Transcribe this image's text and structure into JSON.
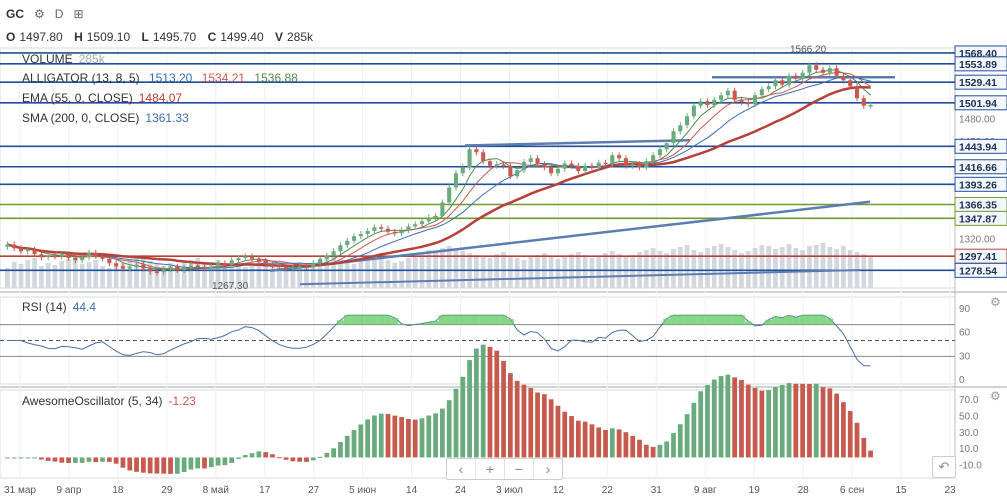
{
  "header": {
    "symbol": "GC",
    "timeframe": "D",
    "ohlc": [
      {
        "label": "O",
        "value": "1497.80"
      },
      {
        "label": "H",
        "value": "1509.10"
      },
      {
        "label": "L",
        "value": "1495.70"
      },
      {
        "label": "C",
        "value": "1499.40"
      },
      {
        "label": "V",
        "value": "285k"
      }
    ]
  },
  "legends": {
    "volume": {
      "name": "VOLUME",
      "value": "285k"
    },
    "alligator": {
      "name": "ALLIGATOR (13, 8, 5)",
      "values": [
        "1513.20",
        "1534.21",
        "1536.88"
      ]
    },
    "ema": {
      "name": "EMA (55, 0, CLOSE)",
      "value": "1484.07"
    },
    "sma": {
      "name": "SMA (200, 0, CLOSE)",
      "value": "1361.33"
    },
    "rsi": {
      "name": "RSI (14)",
      "value": "44.4"
    },
    "ao": {
      "name": "AwesomeOscillator (5, 34)",
      "value": "-1.23"
    }
  },
  "colors": {
    "up": "#6aab7e",
    "down": "#c75a4f",
    "blue_line": "#1f4e9c",
    "steel": "#5b7db3",
    "red_line": "#b5413a",
    "green_line": "#6f9a2c",
    "volume": "#d3d7de",
    "rsi": "#4a6fa5",
    "rsi_fill": "#66cc66"
  },
  "chart_data": [
    {
      "type": "candlestick",
      "title": "GC",
      "y_ticks": [
        1480.0,
        1450.0,
        1320.0
      ],
      "ylim": [
        1255,
        1575
      ],
      "x_ticks": [
        "31 мар",
        "9 апр",
        "18",
        "29",
        "8 май",
        "17",
        "27",
        "5 июн",
        "14",
        "24",
        "3 июл",
        "12",
        "22",
        "31",
        "9 авг",
        "19",
        "28",
        "6 сен",
        "15",
        "23"
      ],
      "price_levels": [
        {
          "value": 1568.4,
          "label": "1568.40",
          "color": "#1f4e9c"
        },
        {
          "value": 1553.89,
          "label": "1553.89",
          "color": "#1f4e9c"
        },
        {
          "value": 1529.41,
          "label": "1529.41",
          "color": "#1f4e9c"
        },
        {
          "value": 1501.94,
          "label": "1501.94",
          "color": "#1f4e9c"
        },
        {
          "value": 1443.94,
          "label": "1443.94",
          "color": "#1f4e9c"
        },
        {
          "value": 1416.66,
          "label": "1416.66",
          "color": "#1f4e9c"
        },
        {
          "value": 1393.26,
          "label": "1393.26",
          "color": "#1f4e9c"
        },
        {
          "value": 1366.35,
          "label": "1366.35",
          "color": "#6f9a2c"
        },
        {
          "value": 1347.87,
          "label": "1347.87",
          "color": "#6f9a2c"
        },
        {
          "value": 1297.41,
          "label": "1297.41",
          "color": "#b5413a"
        },
        {
          "value": 1278.54,
          "label": "1278.54",
          "color": "#1f4e9c"
        }
      ],
      "annotations": [
        {
          "text": "1566.20",
          "value": 1566.2
        },
        {
          "text": "1267.30",
          "value": 1267.3
        }
      ],
      "candles_close": [
        1313,
        1308,
        1304,
        1306,
        1300,
        1296,
        1298,
        1297,
        1300,
        1295,
        1292,
        1296,
        1302,
        1298,
        1294,
        1288,
        1284,
        1281,
        1283,
        1286,
        1281,
        1277,
        1276,
        1280,
        1283,
        1279,
        1282,
        1285,
        1283,
        1281,
        1283,
        1288,
        1286,
        1292,
        1295,
        1297,
        1294,
        1291,
        1287,
        1285,
        1283,
        1281,
        1282,
        1284,
        1283,
        1288,
        1294,
        1298,
        1304,
        1312,
        1318,
        1324,
        1327,
        1331,
        1336,
        1334,
        1330,
        1328,
        1332,
        1337,
        1340,
        1344,
        1349,
        1351,
        1369,
        1389,
        1408,
        1416,
        1440,
        1436,
        1424,
        1418,
        1420,
        1418,
        1404,
        1412,
        1423,
        1428,
        1420,
        1416,
        1408,
        1414,
        1421,
        1418,
        1411,
        1418,
        1416,
        1422,
        1420,
        1432,
        1428,
        1418,
        1420,
        1416,
        1424,
        1432,
        1440,
        1448,
        1464,
        1472,
        1484,
        1498,
        1504,
        1499,
        1506,
        1512,
        1518,
        1506,
        1503,
        1500,
        1512,
        1520,
        1524,
        1532,
        1526,
        1538,
        1534,
        1542,
        1552,
        1546,
        1542,
        1548,
        1538,
        1532,
        1524,
        1508,
        1498,
        1499
      ],
      "volume": [
        40,
        52,
        48,
        56,
        60,
        44,
        50,
        46,
        54,
        58,
        62,
        48,
        52,
        56,
        44,
        40,
        46,
        50,
        58,
        62,
        66,
        54,
        48,
        44,
        50,
        46,
        52,
        56,
        60,
        48,
        52,
        56,
        50,
        48,
        46,
        42,
        50,
        54,
        58,
        48,
        44,
        40,
        46,
        52,
        48,
        50,
        56,
        60,
        64,
        58,
        52,
        48,
        54,
        60,
        66,
        62,
        56,
        50,
        54,
        60,
        64,
        72,
        76,
        70,
        80,
        84,
        78,
        74,
        70,
        66,
        62,
        60,
        68,
        72,
        64,
        60,
        56,
        62,
        66,
        70,
        64,
        58,
        62,
        68,
        72,
        66,
        60,
        64,
        70,
        74,
        68,
        62,
        66,
        72,
        76,
        80,
        74,
        70,
        78,
        82,
        86,
        76,
        72,
        80,
        84,
        88,
        82,
        76,
        70,
        74,
        80,
        86,
        84,
        78,
        82,
        88,
        80,
        76,
        84,
        86,
        90,
        82,
        78,
        84,
        76,
        72,
        68,
        62
      ]
    },
    {
      "type": "line",
      "title": "RSI (14)",
      "y_ticks": [
        90,
        60,
        30,
        0
      ],
      "ylim": [
        -5,
        105
      ],
      "levels": [
        70,
        50,
        30
      ]
    },
    {
      "type": "bar",
      "title": "AwesomeOscillator (5, 34)",
      "y_ticks": [
        70.0,
        50.0,
        30.0,
        10.0,
        -10.0
      ],
      "ylim": [
        -25,
        82
      ]
    }
  ]
}
